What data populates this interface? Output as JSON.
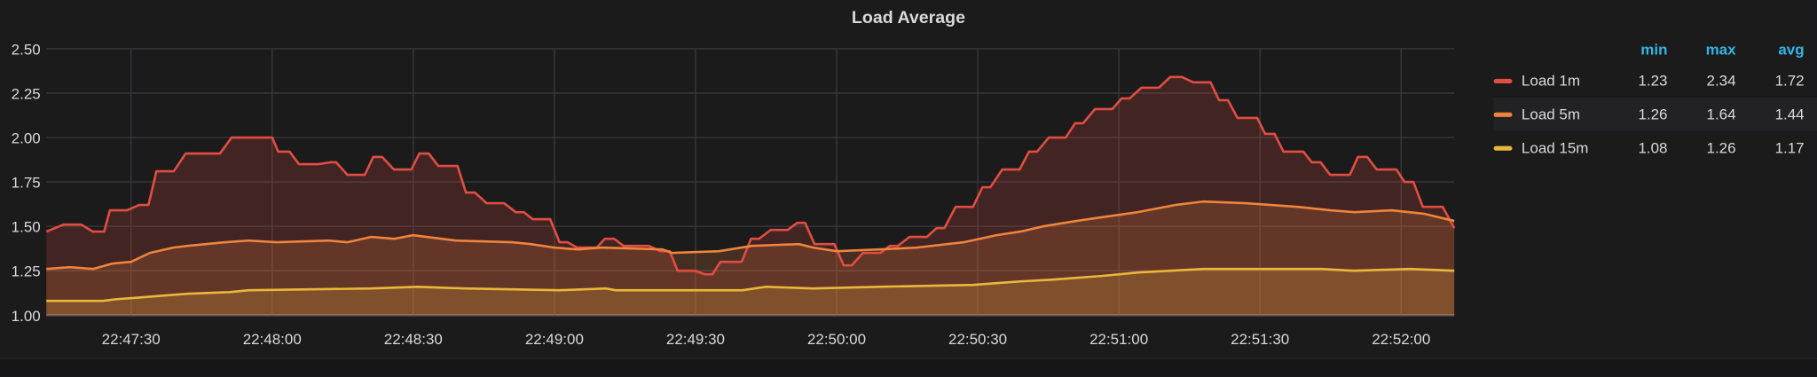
{
  "chart_data": {
    "type": "line",
    "title": "Load Average",
    "xlabel": "",
    "ylabel": "",
    "x_unit": "seconds after 22:47:00",
    "xlim": [
      12,
      311.3
    ],
    "ylim": [
      1.0,
      2.5
    ],
    "yticks": [
      "1.00",
      "1.25",
      "1.50",
      "1.75",
      "2.00",
      "2.25",
      "2.50"
    ],
    "ytick_values": [
      1.0,
      1.25,
      1.5,
      1.75,
      2.0,
      2.25,
      2.5
    ],
    "xticks": [
      "22:47:30",
      "22:48:00",
      "22:48:30",
      "22:49:00",
      "22:49:30",
      "22:50:00",
      "22:50:30",
      "22:51:00",
      "22:51:30",
      "22:52:00"
    ],
    "xtick_values": [
      30,
      60,
      90,
      120,
      150,
      180,
      210,
      240,
      270,
      300
    ],
    "grid": true,
    "fill": true,
    "legend": {
      "placement": "right",
      "columns": [
        "min",
        "max",
        "avg"
      ]
    },
    "series": [
      {
        "name": "Load 1m",
        "color": "#e24d42",
        "min": "1.23",
        "max": "2.34",
        "avg": "1.72",
        "x": [
          12,
          15.7,
          19.4,
          21.9,
          24.3,
          25.5,
          29.2,
          31.7,
          33.7,
          35.4,
          39.1,
          41.6,
          48.9,
          51.4,
          60,
          61.3,
          63.7,
          65.7,
          69.9,
          72.3,
          73.6,
          76,
          79.7,
          81.5,
          83.4,
          85.9,
          89.6,
          91.3,
          93.3,
          95.3,
          99.4,
          101.2,
          103.1,
          105.6,
          109.3,
          111.8,
          113.5,
          115.4,
          119.1,
          121.1,
          122.8,
          124.8,
          129,
          130.7,
          132.7,
          134.7,
          140.1,
          142.5,
          144.5,
          146.2,
          149.9,
          151.9,
          153.6,
          155.3,
          159.8,
          161.8,
          163.5,
          166,
          169.6,
          171.6,
          173.3,
          175.3,
          179.5,
          181.5,
          183.2,
          185.6,
          189.3,
          191.3,
          193,
          195.5,
          199.2,
          201.2,
          202.9,
          205.3,
          209,
          211,
          212.7,
          215.2,
          218.9,
          220.9,
          222.6,
          225.1,
          228.7,
          230.7,
          232.4,
          234.9,
          238.6,
          240.6,
          242.3,
          244.8,
          248.5,
          250.9,
          253.4,
          255.8,
          259.5,
          261.3,
          263.2,
          265.2,
          269.4,
          271.1,
          273.1,
          275,
          279.2,
          281,
          282.9,
          284.9,
          289.1,
          290.8,
          292.8,
          294.8,
          299,
          300.7,
          302.6,
          304.6,
          308.8,
          311.3
        ],
        "y": [
          1.47,
          1.51,
          1.51,
          1.47,
          1.47,
          1.59,
          1.59,
          1.62,
          1.62,
          1.81,
          1.81,
          1.91,
          1.91,
          2.0,
          2.0,
          1.92,
          1.92,
          1.85,
          1.85,
          1.86,
          1.86,
          1.79,
          1.79,
          1.89,
          1.89,
          1.82,
          1.82,
          1.91,
          1.91,
          1.84,
          1.84,
          1.69,
          1.69,
          1.63,
          1.63,
          1.58,
          1.58,
          1.54,
          1.54,
          1.41,
          1.41,
          1.38,
          1.38,
          1.43,
          1.43,
          1.39,
          1.39,
          1.36,
          1.36,
          1.25,
          1.25,
          1.23,
          1.23,
          1.3,
          1.3,
          1.43,
          1.43,
          1.48,
          1.48,
          1.52,
          1.52,
          1.4,
          1.4,
          1.28,
          1.28,
          1.35,
          1.35,
          1.39,
          1.39,
          1.44,
          1.44,
          1.49,
          1.49,
          1.61,
          1.61,
          1.72,
          1.72,
          1.82,
          1.82,
          1.92,
          1.92,
          2.0,
          2.0,
          2.08,
          2.08,
          2.16,
          2.16,
          2.22,
          2.22,
          2.28,
          2.28,
          2.34,
          2.34,
          2.31,
          2.31,
          2.21,
          2.21,
          2.11,
          2.11,
          2.02,
          2.02,
          1.92,
          1.92,
          1.86,
          1.86,
          1.79,
          1.79,
          1.89,
          1.89,
          1.82,
          1.82,
          1.75,
          1.75,
          1.61,
          1.61,
          1.49
        ]
      },
      {
        "name": "Load 5m",
        "color": "#ef843c",
        "min": "1.26",
        "max": "1.64",
        "avg": "1.44",
        "x": [
          12,
          17,
          22,
          26,
          30,
          34,
          39,
          42,
          50,
          55,
          61,
          72,
          76,
          81,
          86,
          90,
          99,
          111,
          115,
          120,
          125,
          130,
          143,
          145,
          155,
          162,
          172,
          175,
          180,
          189,
          197,
          207,
          214,
          219,
          224,
          231,
          236,
          244,
          248,
          252,
          258,
          267,
          278,
          285,
          290,
          298,
          305,
          311.3
        ],
        "y": [
          1.26,
          1.27,
          1.26,
          1.29,
          1.3,
          1.35,
          1.38,
          1.39,
          1.41,
          1.42,
          1.41,
          1.42,
          1.41,
          1.44,
          1.43,
          1.45,
          1.42,
          1.41,
          1.4,
          1.38,
          1.37,
          1.38,
          1.37,
          1.35,
          1.36,
          1.39,
          1.4,
          1.38,
          1.36,
          1.37,
          1.38,
          1.41,
          1.45,
          1.47,
          1.5,
          1.53,
          1.55,
          1.58,
          1.6,
          1.62,
          1.64,
          1.63,
          1.61,
          1.59,
          1.58,
          1.59,
          1.57,
          1.53
        ]
      },
      {
        "name": "Load 15m",
        "color": "#eab839",
        "min": "1.08",
        "max": "1.26",
        "avg": "1.17",
        "x": [
          12,
          24,
          27,
          32,
          37,
          42,
          51,
          55,
          81,
          91,
          101,
          121,
          131,
          133,
          160,
          165,
          175,
          189,
          209,
          214,
          219,
          226,
          231,
          236,
          244,
          251,
          258,
          283,
          290,
          302,
          311.3
        ],
        "y": [
          1.08,
          1.08,
          1.09,
          1.1,
          1.11,
          1.12,
          1.13,
          1.14,
          1.15,
          1.16,
          1.15,
          1.14,
          1.15,
          1.14,
          1.14,
          1.16,
          1.15,
          1.16,
          1.17,
          1.18,
          1.19,
          1.2,
          1.21,
          1.22,
          1.24,
          1.25,
          1.26,
          1.26,
          1.25,
          1.26,
          1.25
        ]
      }
    ]
  }
}
